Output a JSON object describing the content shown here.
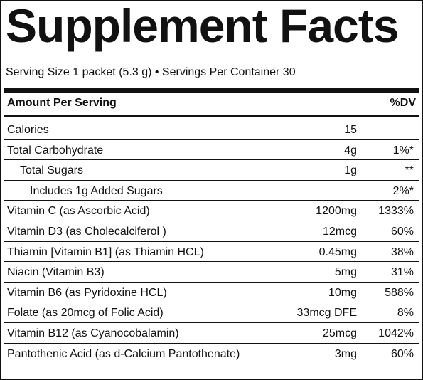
{
  "title": "Supplement Facts",
  "serving": "Serving Size 1 packet (5.3 g) • Servings Per Container 30",
  "header": {
    "amount": "Amount Per Serving",
    "dv": "%DV"
  },
  "rows": [
    {
      "name": "Calories",
      "amount": "15"
    },
    {
      "name": "Total Carbohydrate",
      "amount": "4g",
      "dv": "1%*"
    },
    {
      "name": "Total Sugars",
      "amount": "1g",
      "dv": "**"
    },
    {
      "name": "Includes 1g Added Sugars",
      "dv": "2%*"
    },
    {
      "name": "Vitamin C (as Ascorbic Acid)",
      "amount": "1200mg",
      "dv": "1333%"
    },
    {
      "name": "Vitamin D3 (as Cholecalciferol )",
      "amount": "12mcg",
      "dv": "60%"
    },
    {
      "name": "Thiamin [Vitamin B1] (as Thiamin HCL)",
      "amount": "0.45mg",
      "dv": "38%"
    },
    {
      "name": "Niacin (Vitamin B3)",
      "amount": "5mg",
      "dv": "31%"
    },
    {
      "name": "Vitamin B6 (as Pyridoxine HCL)",
      "amount": "10mg",
      "dv": "588%"
    },
    {
      "name": "Folate (as 20mcg of Folic Acid)",
      "amount": "33mcg DFE",
      "dv": "8%"
    },
    {
      "name": "Vitamin B12 (as Cyanocobalamin)",
      "amount": "25mcg",
      "dv": "1042%"
    },
    {
      "name": "Pantothenic Acid (as d-Calcium Pantothenate)",
      "amount": "3mg",
      "dv": "60%"
    }
  ]
}
